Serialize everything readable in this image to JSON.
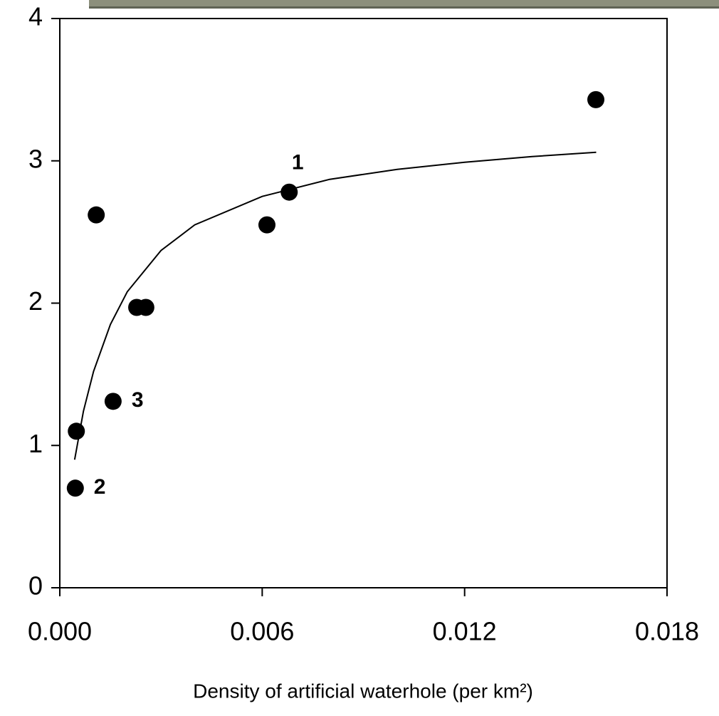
{
  "chart_data": {
    "type": "scatter",
    "x_label": "Density of artificial waterhole (per km²)",
    "xlim": [
      0,
      0.018
    ],
    "xticks": [
      {
        "value": 0,
        "label": "0.000"
      },
      {
        "value": 0.006,
        "label": "0.006"
      },
      {
        "value": 0.012,
        "label": "0.012"
      },
      {
        "value": 0.018,
        "label": "0.018"
      }
    ],
    "ylim": [
      0,
      4
    ],
    "yticks": [
      0,
      1,
      2,
      3,
      4
    ],
    "series": [
      {
        "type": "scatter",
        "color": "#000000",
        "x": [
          0.00108,
          0.00228,
          0.00255,
          0.00158,
          0.00049,
          0.00046,
          0.00614,
          0.0068,
          0.01589
        ],
        "values": [
          2.62,
          1.97,
          1.97,
          1.31,
          1.1,
          0.7,
          2.55,
          2.78,
          3.43
        ],
        "labels": [
          null,
          null,
          null,
          "3",
          null,
          "2",
          null,
          "1",
          null
        ]
      },
      {
        "type": "line",
        "color": "#000000",
        "x": [
          0.00044,
          0.0007,
          0.001,
          0.0015,
          0.002,
          0.003,
          0.004,
          0.006,
          0.008,
          0.01,
          0.012,
          0.014,
          0.0159
        ],
        "values": [
          0.9,
          1.24,
          1.52,
          1.85,
          2.08,
          2.37,
          2.55,
          2.75,
          2.87,
          2.94,
          2.99,
          3.03,
          3.06
        ]
      }
    ]
  }
}
